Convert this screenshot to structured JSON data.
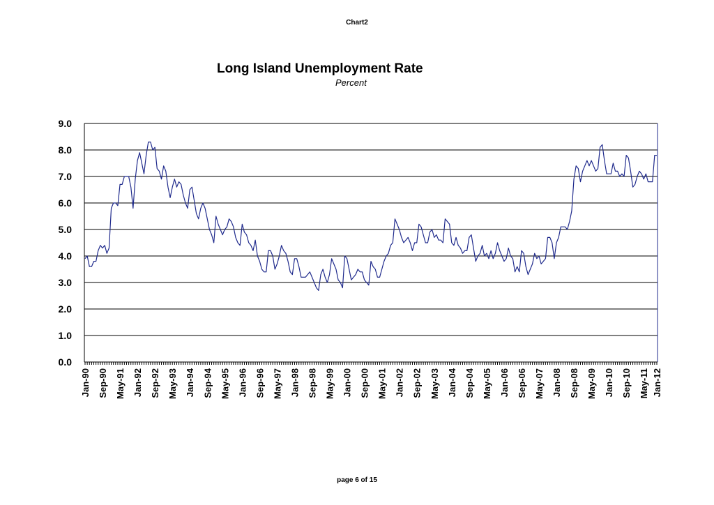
{
  "page": {
    "header": "Chart2",
    "footer": "page 6 of 15"
  },
  "chart_data": {
    "type": "line",
    "title": "Long Island Unemployment Rate",
    "subtitle": "Percent",
    "xlabel": "",
    "ylabel": "",
    "ylim": [
      0,
      9
    ],
    "yticks": [
      "0.0",
      "1.0",
      "2.0",
      "3.0",
      "4.0",
      "5.0",
      "6.0",
      "7.0",
      "8.0",
      "9.0"
    ],
    "grid": "horizontal",
    "x_start": "Jan-90",
    "x_end": "Jan-12",
    "xtick_labels": [
      "Jan-90",
      "Sep-90",
      "May-91",
      "Jan-92",
      "Sep-92",
      "May-93",
      "Jan-94",
      "Sep-94",
      "May-95",
      "Jan-96",
      "Sep-96",
      "May-97",
      "Jan-98",
      "Sep-98",
      "May-99",
      "Jan-00",
      "Sep-00",
      "May-01",
      "Jan-02",
      "Sep-02",
      "May-03",
      "Jan-04",
      "Sep-04",
      "May-05",
      "Jan-06",
      "Sep-06",
      "May-07",
      "Jan-08",
      "Sep-08",
      "May-09",
      "Jan-10",
      "Sep-10",
      "May-11",
      "Jan-12"
    ],
    "line_color": "#1f2a8c",
    "series": [
      {
        "values": [
          3.9,
          4.0,
          3.6,
          3.6,
          3.8,
          3.8,
          4.2,
          4.4,
          4.3,
          4.4,
          4.1,
          4.3,
          5.8,
          6.0,
          6.0,
          5.9,
          6.7,
          6.7,
          7.0,
          7.0,
          7.0,
          6.6,
          5.8,
          6.9,
          7.6,
          7.9,
          7.5,
          7.1,
          7.8,
          8.3,
          8.3,
          8.0,
          8.1,
          7.3,
          7.2,
          6.9,
          7.4,
          7.2,
          6.6,
          6.2,
          6.6,
          6.9,
          6.6,
          6.8,
          6.7,
          6.3,
          6.0,
          5.8,
          6.5,
          6.6,
          6.1,
          5.6,
          5.4,
          5.8,
          6.0,
          5.8,
          5.4,
          5.0,
          4.8,
          4.5,
          5.5,
          5.2,
          5.0,
          4.8,
          5.0,
          5.1,
          5.4,
          5.3,
          5.1,
          4.7,
          4.5,
          4.4,
          5.2,
          4.9,
          4.8,
          4.5,
          4.4,
          4.2,
          4.6,
          4.0,
          3.8,
          3.5,
          3.4,
          3.4,
          4.2,
          4.2,
          4.0,
          3.5,
          3.7,
          4.0,
          4.4,
          4.2,
          4.1,
          3.8,
          3.4,
          3.3,
          3.9,
          3.9,
          3.6,
          3.2,
          3.2,
          3.2,
          3.3,
          3.4,
          3.2,
          3.0,
          2.8,
          2.7,
          3.3,
          3.5,
          3.2,
          3.0,
          3.3,
          3.9,
          3.7,
          3.5,
          3.1,
          3.0,
          2.8,
          4.0,
          3.9,
          3.5,
          3.1,
          3.2,
          3.3,
          3.5,
          3.4,
          3.4,
          3.1,
          3.0,
          2.9,
          3.8,
          3.6,
          3.5,
          3.2,
          3.2,
          3.5,
          3.8,
          4.0,
          4.1,
          4.4,
          4.5,
          5.4,
          5.2,
          5.0,
          4.7,
          4.5,
          4.6,
          4.7,
          4.5,
          4.2,
          4.5,
          4.5,
          5.2,
          5.1,
          4.8,
          4.5,
          4.5,
          4.9,
          5.0,
          4.7,
          4.8,
          4.6,
          4.6,
          4.5,
          5.4,
          5.3,
          5.2,
          4.5,
          4.4,
          4.7,
          4.4,
          4.3,
          4.1,
          4.2,
          4.2,
          4.7,
          4.8,
          4.3,
          3.8,
          4.0,
          4.1,
          4.4,
          4.0,
          4.1,
          3.9,
          4.2,
          3.9,
          4.1,
          4.5,
          4.2,
          4.0,
          3.8,
          3.9,
          4.3,
          4.0,
          3.9,
          3.4,
          3.6,
          3.4,
          4.2,
          4.1,
          3.6,
          3.3,
          3.5,
          3.7,
          4.1,
          3.9,
          4.0,
          3.7,
          3.8,
          3.9,
          4.7,
          4.7,
          4.5,
          3.9,
          4.5,
          4.7,
          5.1,
          5.1,
          5.1,
          5.0,
          5.3,
          5.7,
          6.9,
          7.4,
          7.3,
          6.8,
          7.2,
          7.4,
          7.6,
          7.4,
          7.6,
          7.4,
          7.2,
          7.3,
          8.1,
          8.2,
          7.6,
          7.1,
          7.1,
          7.1,
          7.5,
          7.2,
          7.2,
          7.0,
          7.1,
          7.0,
          7.8,
          7.7,
          7.2,
          6.6,
          6.7,
          7.0,
          7.2,
          7.1,
          6.9,
          7.1,
          6.8,
          6.8,
          6.8,
          7.8,
          7.8
        ]
      }
    ]
  }
}
